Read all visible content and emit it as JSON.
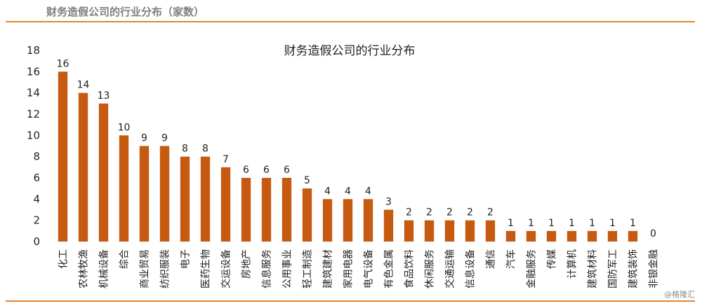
{
  "figure": {
    "title": "财务造假公司的行业分布（家数）",
    "watermark": "@格隆汇"
  },
  "colors": {
    "bar": "#c65a11",
    "rule": "#e0862e"
  },
  "chart_data": {
    "type": "bar",
    "title": "财务造假公司的行业分布",
    "xlabel": "",
    "ylabel": "",
    "ylim": [
      0,
      18
    ],
    "yticks": [
      0,
      2,
      4,
      6,
      8,
      10,
      12,
      14,
      16,
      18
    ],
    "grid": false,
    "categories": [
      "化工",
      "农林牧渔",
      "机械设备",
      "综合",
      "商业贸易",
      "纺织服装",
      "电子",
      "医药生物",
      "交运设备",
      "房地产",
      "信息服务",
      "公用事业",
      "轻工制造",
      "建筑建材",
      "家用电器",
      "电气设备",
      "有色金属",
      "食品饮料",
      "休闲服务",
      "交通运输",
      "信息设备",
      "通信",
      "汽车",
      "金融服务",
      "传媒",
      "计算机",
      "建筑材料",
      "国防军工",
      "建筑装饰",
      "非银金融"
    ],
    "values": [
      16,
      14,
      13,
      10,
      9,
      9,
      8,
      8,
      7,
      6,
      6,
      6,
      5,
      4,
      4,
      4,
      3,
      2,
      2,
      2,
      2,
      2,
      1,
      1,
      1,
      1,
      1,
      1,
      1,
      0
    ]
  }
}
